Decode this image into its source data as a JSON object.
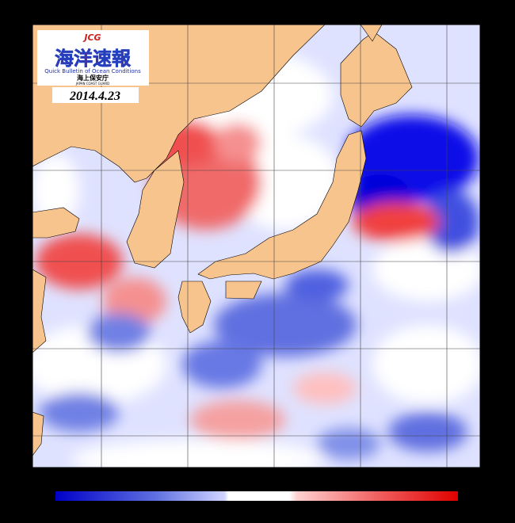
{
  "logo": {
    "mark": "JCG",
    "title": "海洋速報",
    "subtitle": "Quick Bulletin of Ocean Conditions",
    "agency": "海上保安庁",
    "agency_en": "JAPAN COAST GUARD"
  },
  "date": "2014.4.23"
}
